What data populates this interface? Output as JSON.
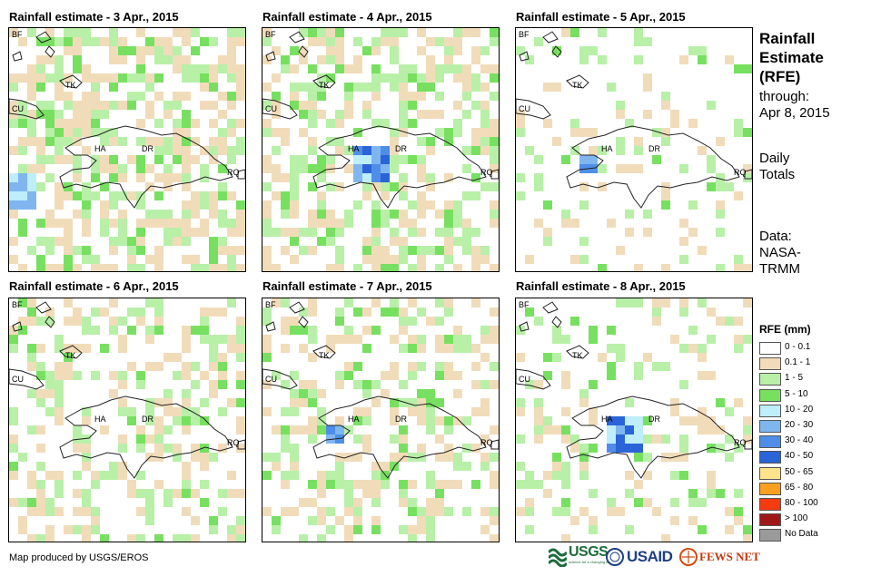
{
  "panels": [
    {
      "title": "Rainfall estimate - 3 Apr., 2015",
      "seed": 3,
      "density": 0.58,
      "hot": "west"
    },
    {
      "title": "Rainfall estimate - 4 Apr., 2015",
      "seed": 4,
      "density": 0.5,
      "hot": "center"
    },
    {
      "title": "Rainfall estimate - 5 Apr., 2015",
      "seed": 5,
      "density": 0.18,
      "hot": "haiti"
    },
    {
      "title": "Rainfall estimate - 6 Apr., 2015",
      "seed": 6,
      "density": 0.36,
      "hot": "none"
    },
    {
      "title": "Rainfall estimate - 7 Apr., 2015",
      "seed": 7,
      "density": 0.38,
      "hot": "haiti"
    },
    {
      "title": "Rainfall estimate - 8 Apr., 2015",
      "seed": 8,
      "density": 0.28,
      "hot": "center"
    }
  ],
  "map_labels": {
    "bf": "BF",
    "cu": "CU",
    "tk": "TK",
    "ha": "HA",
    "dr": "DR",
    "rq": "RQ"
  },
  "sidebar": {
    "title_line1": "Rainfall",
    "title_line2": "Estimate",
    "title_line3": "(RFE)",
    "through_label": "through:",
    "through_date": "Apr 8, 2015",
    "daily_line1": "Daily",
    "daily_line2": "Totals",
    "data_line1": "Data:",
    "data_line2": "NASA-",
    "data_line3": "TRMM"
  },
  "legend": {
    "title": "RFE (mm)",
    "items": [
      {
        "label": "0 - 0.1",
        "color": "#ffffff"
      },
      {
        "label": "0.1 - 1",
        "color": "#f1dcba"
      },
      {
        "label": "1 - 5",
        "color": "#b8f0a8"
      },
      {
        "label": "5 - 10",
        "color": "#78e060"
      },
      {
        "label": "10 - 20",
        "color": "#bdeefa"
      },
      {
        "label": "20 - 30",
        "color": "#7fb6f0"
      },
      {
        "label": "30 - 40",
        "color": "#4f8ee8"
      },
      {
        "label": "40 - 50",
        "color": "#2a64d8"
      },
      {
        "label": "50 - 65",
        "color": "#fde48a"
      },
      {
        "label": "65 - 80",
        "color": "#fba020"
      },
      {
        "label": "80 - 100",
        "color": "#f83a10"
      },
      {
        "label": "> 100",
        "color": "#a01818"
      },
      {
        "label": "No Data",
        "color": "#9a9a9a"
      }
    ]
  },
  "footer": {
    "credit": "Map produced by USGS/EROS"
  },
  "logos": {
    "usgs": "USGS",
    "usgs_tagline": "science for a changing world",
    "usaid": "USAID",
    "fews": "FEWS NET"
  }
}
